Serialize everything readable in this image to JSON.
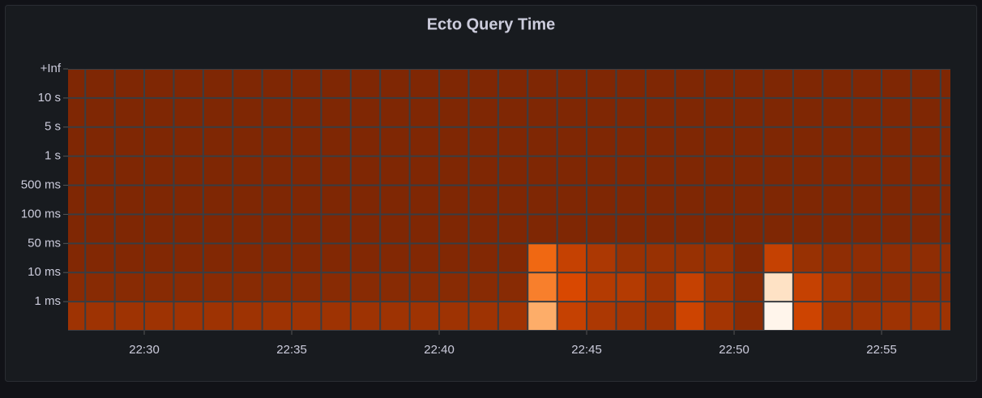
{
  "chart_data": {
    "type": "heatmap",
    "title": "Ecto Query Time",
    "x": [
      "22:27",
      "22:28",
      "22:29",
      "22:30",
      "22:31",
      "22:32",
      "22:33",
      "22:34",
      "22:35",
      "22:36",
      "22:37",
      "22:38",
      "22:39",
      "22:40",
      "22:41",
      "22:42",
      "22:43",
      "22:44",
      "22:45",
      "22:46",
      "22:47",
      "22:48",
      "22:49",
      "22:50",
      "22:51",
      "22:52",
      "22:53",
      "22:54",
      "22:55",
      "22:56",
      "22:57"
    ],
    "xlim": [
      "22:27:25",
      "22:57:20"
    ],
    "xticks": [
      "22:30",
      "22:35",
      "22:40",
      "22:45",
      "22:50",
      "22:55"
    ],
    "yticks": [
      "1 ms",
      "10 ms",
      "50 ms",
      "100 ms",
      "500 ms",
      "1 s",
      "5 s",
      "10 s",
      "+Inf"
    ],
    "values": [
      [
        10,
        10,
        10,
        10,
        10,
        10,
        10,
        10,
        10,
        10,
        10,
        10,
        10,
        10,
        10,
        10,
        62,
        20,
        14,
        12,
        10,
        22,
        12,
        4,
        100,
        22,
        10,
        10,
        10,
        10,
        10
      ],
      [
        3,
        3,
        3,
        3,
        3,
        3,
        3,
        3,
        3,
        3,
        3,
        3,
        3,
        3,
        3,
        3,
        45,
        25,
        16,
        16,
        10,
        20,
        10,
        3,
        85,
        20,
        12,
        5,
        5,
        5,
        5
      ],
      [
        1,
        1,
        1,
        1,
        1,
        1,
        1,
        1,
        1,
        1,
        1,
        1,
        1,
        1,
        1,
        1,
        37,
        20,
        14,
        8,
        8,
        8,
        8,
        1,
        20,
        8,
        5,
        5,
        5,
        5,
        5
      ],
      [
        0,
        0,
        0,
        0,
        0,
        0,
        0,
        0,
        0,
        0,
        0,
        0,
        0,
        0,
        0,
        0,
        0,
        0,
        0,
        0,
        0,
        0,
        0,
        0,
        0,
        0,
        0,
        0,
        0,
        0,
        0
      ],
      [
        0,
        0,
        0,
        0,
        0,
        0,
        0,
        0,
        0,
        0,
        0,
        0,
        0,
        0,
        0,
        0,
        0,
        0,
        0,
        0,
        0,
        0,
        0,
        0,
        0,
        0,
        0,
        0,
        0,
        0,
        0
      ],
      [
        0,
        0,
        0,
        0,
        0,
        0,
        0,
        0,
        0,
        0,
        0,
        0,
        0,
        0,
        0,
        0,
        0,
        0,
        0,
        0,
        0,
        0,
        0,
        0,
        0,
        0,
        0,
        0,
        0,
        0,
        0
      ],
      [
        0,
        0,
        0,
        0,
        0,
        0,
        0,
        0,
        0,
        0,
        0,
        0,
        0,
        0,
        0,
        0,
        0,
        0,
        0,
        0,
        0,
        0,
        0,
        0,
        0,
        0,
        0,
        0,
        0,
        0,
        0
      ],
      [
        0,
        0,
        0,
        0,
        0,
        0,
        0,
        0,
        0,
        0,
        0,
        0,
        0,
        0,
        0,
        0,
        0,
        0,
        0,
        0,
        0,
        0,
        0,
        0,
        0,
        0,
        0,
        0,
        0,
        0,
        0
      ],
      [
        0,
        0,
        0,
        0,
        0,
        0,
        0,
        0,
        0,
        0,
        0,
        0,
        0,
        0,
        0,
        0,
        0,
        0,
        0,
        0,
        0,
        0,
        0,
        0,
        0,
        0,
        0,
        0,
        0,
        0,
        0
      ]
    ],
    "zlim": [
      0,
      100
    ],
    "colorscale": [
      "#7f2704",
      "#a63603",
      "#d94801",
      "#f16913",
      "#fd8d3c",
      "#fdae6b",
      "#fdd0a2",
      "#fee6ce",
      "#fff5eb"
    ]
  }
}
